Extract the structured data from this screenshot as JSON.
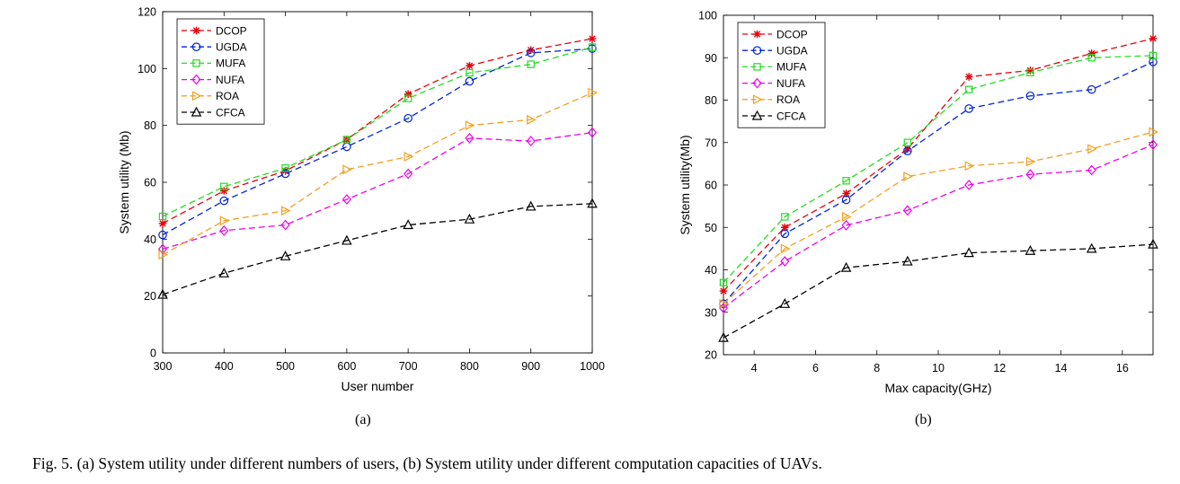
{
  "figure": {
    "caption": "Fig. 5.  (a) System utility under different numbers of users, (b) System utility under different computation capacities of UAVs.",
    "subfigure_labels": [
      "(a)",
      "(b)"
    ]
  },
  "colors": {
    "DCOP": "#e8000b",
    "UGDA": "#0025d9",
    "MUFA": "#22dd22",
    "NUFA": "#ee00ee",
    "ROA": "#f4a020",
    "CFCA": "#000000"
  },
  "chart_data": [
    {
      "type": "line",
      "title": "",
      "xlabel": "User number",
      "ylabel": "System utility (Mb)",
      "xlim": [
        300,
        1000
      ],
      "ylim": [
        0,
        120
      ],
      "xticks": [
        300,
        400,
        500,
        600,
        700,
        800,
        900,
        1000
      ],
      "yticks": [
        0,
        20,
        40,
        60,
        80,
        100,
        120
      ],
      "grid": false,
      "legend_position": "top-left",
      "x": [
        300,
        400,
        500,
        600,
        700,
        800,
        900,
        1000
      ],
      "series": [
        {
          "name": "DCOP",
          "marker": "asterisk",
          "values": [
            45.5,
            57,
            64,
            75,
            91,
            101,
            106.5,
            110.5
          ]
        },
        {
          "name": "UGDA",
          "marker": "circle",
          "values": [
            41.5,
            53.5,
            63,
            72.5,
            82.5,
            95.5,
            105.5,
            107
          ]
        },
        {
          "name": "MUFA",
          "marker": "square",
          "values": [
            48,
            58.5,
            65,
            75,
            89.5,
            98.5,
            101.5,
            107.5
          ]
        },
        {
          "name": "NUFA",
          "marker": "diamond",
          "values": [
            36.5,
            43,
            45,
            54,
            63,
            75.5,
            74.5,
            77.5
          ]
        },
        {
          "name": "ROA",
          "marker": "triangle-right",
          "values": [
            34.5,
            46.5,
            50,
            64.5,
            69,
            80,
            82,
            91.5
          ]
        },
        {
          "name": "CFCA",
          "marker": "triangle-up",
          "values": [
            20.5,
            28,
            34,
            39.5,
            45,
            47,
            51.5,
            52.5
          ]
        }
      ]
    },
    {
      "type": "line",
      "title": "",
      "xlabel": "Max capacity(GHz)",
      "ylabel": "System utility(Mb)",
      "xlim": [
        3,
        17
      ],
      "ylim": [
        20,
        100
      ],
      "xticks": [
        4,
        6,
        8,
        10,
        12,
        14,
        16
      ],
      "yticks": [
        20,
        30,
        40,
        50,
        60,
        70,
        80,
        90,
        100
      ],
      "grid": false,
      "legend_position": "top-left",
      "x": [
        3,
        5,
        7,
        9,
        11,
        13,
        15,
        17
      ],
      "series": [
        {
          "name": "DCOP",
          "marker": "asterisk",
          "values": [
            35,
            50,
            58,
            68.5,
            85.5,
            87,
            91,
            94.5
          ]
        },
        {
          "name": "UGDA",
          "marker": "circle",
          "values": [
            32,
            48.5,
            56.5,
            68,
            78,
            81,
            82.5,
            89
          ]
        },
        {
          "name": "MUFA",
          "marker": "square",
          "values": [
            37,
            52.5,
            61,
            70,
            82.5,
            86.5,
            90,
            90.5
          ]
        },
        {
          "name": "NUFA",
          "marker": "diamond",
          "values": [
            31,
            42,
            50.5,
            54,
            60,
            62.5,
            63.5,
            69.5
          ]
        },
        {
          "name": "ROA",
          "marker": "triangle-right",
          "values": [
            32,
            45,
            52.5,
            62,
            64.5,
            65.5,
            68.5,
            72.5
          ]
        },
        {
          "name": "CFCA",
          "marker": "triangle-up",
          "values": [
            24,
            32,
            40.5,
            42,
            44,
            44.5,
            45,
            46
          ]
        }
      ]
    }
  ]
}
